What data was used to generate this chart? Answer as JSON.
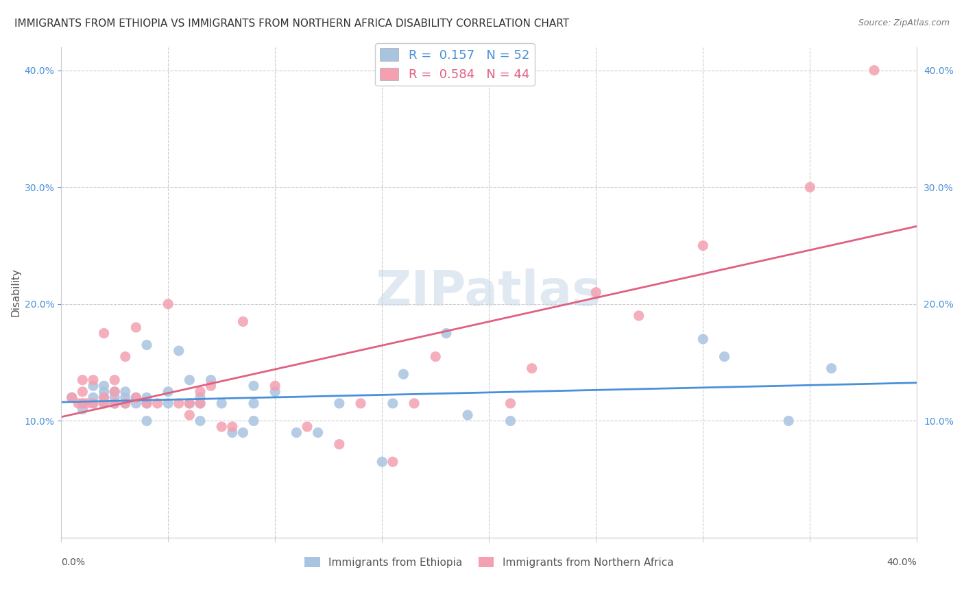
{
  "title": "IMMIGRANTS FROM ETHIOPIA VS IMMIGRANTS FROM NORTHERN AFRICA DISABILITY CORRELATION CHART",
  "source": "Source: ZipAtlas.com",
  "ylabel": "Disability",
  "xlim": [
    0,
    0.4
  ],
  "ylim": [
    0,
    0.42
  ],
  "yticks": [
    0.1,
    0.2,
    0.3,
    0.4
  ],
  "ytick_labels": [
    "10.0%",
    "20.0%",
    "30.0%",
    "40.0%"
  ],
  "xticks": [
    0.0,
    0.05,
    0.1,
    0.15,
    0.2,
    0.25,
    0.3,
    0.35,
    0.4
  ],
  "legend_R_blue": "0.157",
  "legend_N_blue": "52",
  "legend_R_pink": "0.584",
  "legend_N_pink": "44",
  "blue_color": "#a8c4e0",
  "pink_color": "#f4a0b0",
  "blue_line_color": "#4a90d9",
  "pink_line_color": "#e06080",
  "watermark": "ZIPatlas",
  "blue_scatter_x": [
    0.005,
    0.01,
    0.01,
    0.015,
    0.015,
    0.015,
    0.02,
    0.02,
    0.02,
    0.02,
    0.025,
    0.025,
    0.025,
    0.025,
    0.03,
    0.03,
    0.03,
    0.035,
    0.035,
    0.04,
    0.04,
    0.04,
    0.04,
    0.05,
    0.05,
    0.055,
    0.06,
    0.06,
    0.065,
    0.065,
    0.065,
    0.07,
    0.075,
    0.08,
    0.085,
    0.09,
    0.09,
    0.09,
    0.1,
    0.11,
    0.12,
    0.13,
    0.15,
    0.155,
    0.16,
    0.18,
    0.19,
    0.21,
    0.3,
    0.31,
    0.34,
    0.36
  ],
  "blue_scatter_y": [
    0.12,
    0.11,
    0.115,
    0.12,
    0.115,
    0.13,
    0.115,
    0.12,
    0.125,
    0.13,
    0.115,
    0.115,
    0.12,
    0.125,
    0.115,
    0.12,
    0.125,
    0.115,
    0.12,
    0.1,
    0.115,
    0.12,
    0.165,
    0.115,
    0.125,
    0.16,
    0.115,
    0.135,
    0.1,
    0.115,
    0.12,
    0.135,
    0.115,
    0.09,
    0.09,
    0.1,
    0.115,
    0.13,
    0.125,
    0.09,
    0.09,
    0.115,
    0.065,
    0.115,
    0.14,
    0.175,
    0.105,
    0.1,
    0.17,
    0.155,
    0.1,
    0.145
  ],
  "pink_scatter_x": [
    0.005,
    0.008,
    0.01,
    0.01,
    0.01,
    0.012,
    0.015,
    0.015,
    0.02,
    0.02,
    0.02,
    0.025,
    0.025,
    0.025,
    0.03,
    0.03,
    0.035,
    0.035,
    0.04,
    0.045,
    0.05,
    0.055,
    0.06,
    0.06,
    0.065,
    0.065,
    0.07,
    0.075,
    0.08,
    0.085,
    0.1,
    0.115,
    0.13,
    0.14,
    0.155,
    0.165,
    0.175,
    0.21,
    0.22,
    0.25,
    0.27,
    0.3,
    0.35,
    0.38
  ],
  "pink_scatter_y": [
    0.12,
    0.115,
    0.115,
    0.125,
    0.135,
    0.115,
    0.115,
    0.135,
    0.115,
    0.12,
    0.175,
    0.115,
    0.125,
    0.135,
    0.115,
    0.155,
    0.12,
    0.18,
    0.115,
    0.115,
    0.2,
    0.115,
    0.115,
    0.105,
    0.115,
    0.125,
    0.13,
    0.095,
    0.095,
    0.185,
    0.13,
    0.095,
    0.08,
    0.115,
    0.065,
    0.115,
    0.155,
    0.115,
    0.145,
    0.21,
    0.19,
    0.25,
    0.3,
    0.4
  ]
}
